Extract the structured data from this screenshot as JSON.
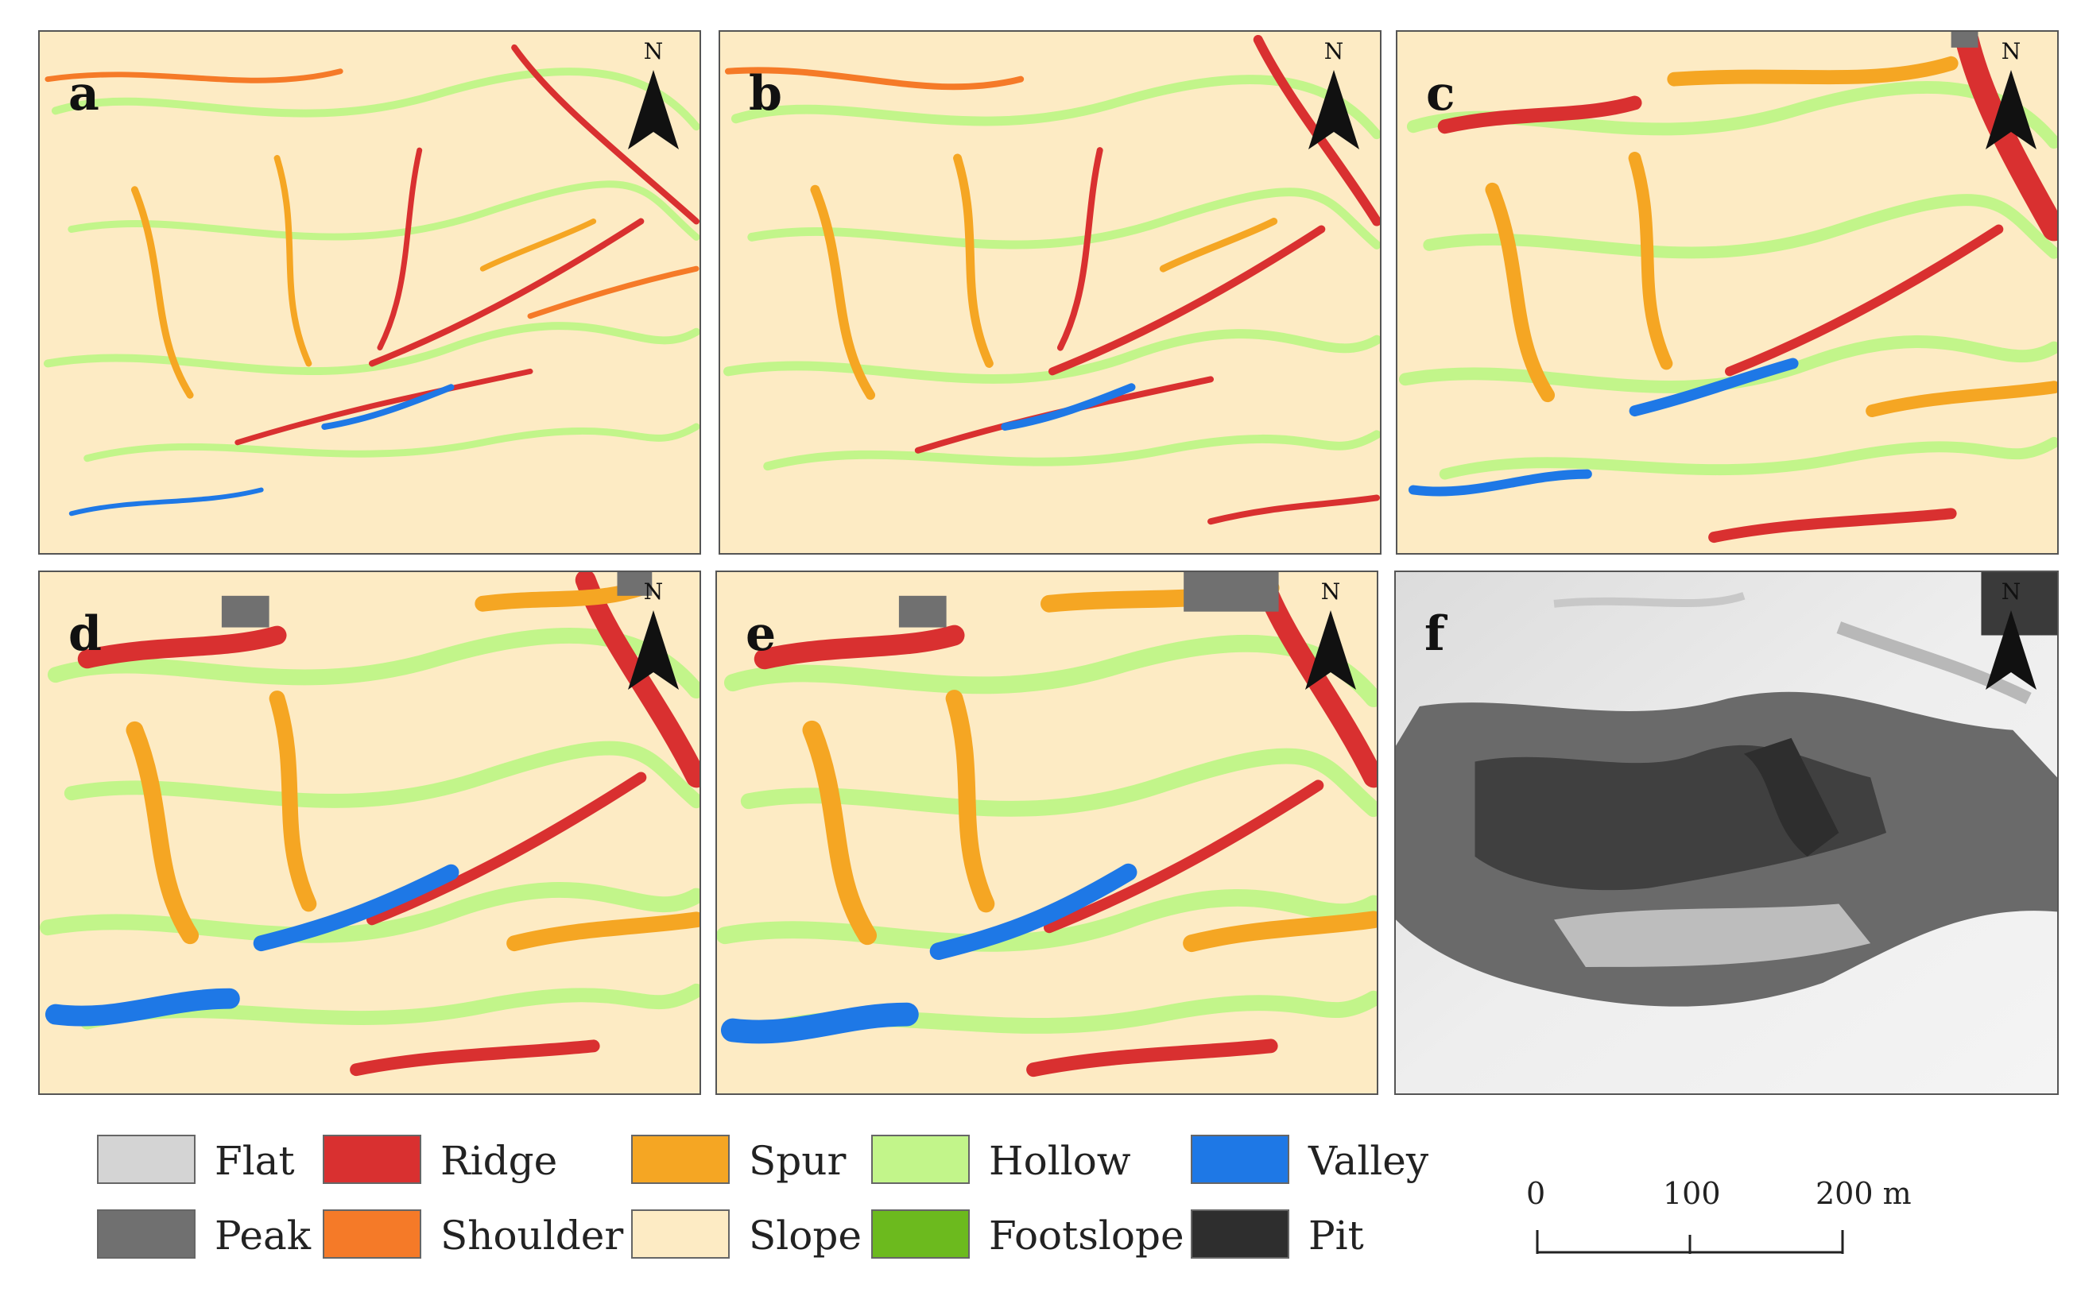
{
  "panels": [
    {
      "label": "a"
    },
    {
      "label": "b"
    },
    {
      "label": "c"
    },
    {
      "label": "d"
    },
    {
      "label": "e"
    },
    {
      "label": "f"
    }
  ],
  "north_label": "N",
  "legend": [
    {
      "label": "Flat",
      "color": "#d4d4d4"
    },
    {
      "label": "Ridge",
      "color": "#d93030"
    },
    {
      "label": "Spur",
      "color": "#f5a623"
    },
    {
      "label": "Hollow",
      "color": "#c2f58a"
    },
    {
      "label": "Valley",
      "color": "#1e78e6"
    },
    {
      "label": "Peak",
      "color": "#707070"
    },
    {
      "label": "Shoulder",
      "color": "#f57a28"
    },
    {
      "label": "Slope",
      "color": "#fdebc4"
    },
    {
      "label": "Footslope",
      "color": "#6cba1e"
    },
    {
      "label": "Pit",
      "color": "#2e2e2e"
    }
  ],
  "scale": {
    "tick0": "0",
    "tick1": "100",
    "tick2": "200 m"
  }
}
